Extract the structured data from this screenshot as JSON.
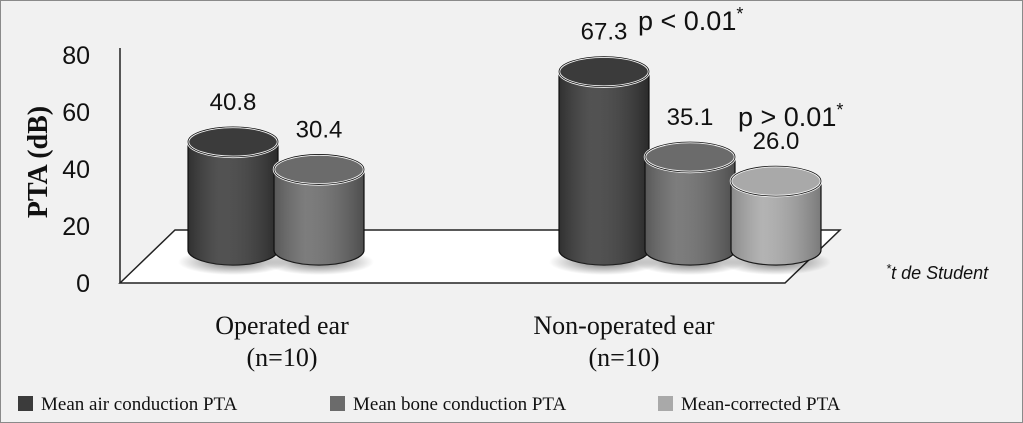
{
  "chart_data": {
    "type": "bar",
    "ylabel": "PTA (dB)",
    "ylim": [
      0,
      80
    ],
    "yticks": [
      0,
      20,
      40,
      60,
      80
    ],
    "categories": [
      {
        "line1": "Operated ear",
        "line2": "(n=10)"
      },
      {
        "line1": "Non-operated ear",
        "line2": "(n=10)"
      }
    ],
    "series": [
      {
        "name": "Mean air conduction PTA",
        "color": "#3b3b3b",
        "values": [
          40.8,
          67.3
        ]
      },
      {
        "name": "Mean bone conduction PTA",
        "color": "#6b6b6b",
        "values": [
          30.4,
          35.1
        ]
      },
      {
        "name": "Mean-corrected PTA",
        "color": "#a9a9a9",
        "values": [
          null,
          26.0
        ]
      }
    ],
    "data_labels": [
      "40.8",
      "30.4",
      "67.3",
      "35.1",
      "26.0"
    ],
    "annotations": [
      {
        "text": "p < 0.01",
        "sup": "*"
      },
      {
        "text": "p > 0.01",
        "sup": "*"
      }
    ],
    "footnote": {
      "sup": "*",
      "text": "t de Student"
    },
    "grid": false,
    "legend_position": "bottom"
  }
}
